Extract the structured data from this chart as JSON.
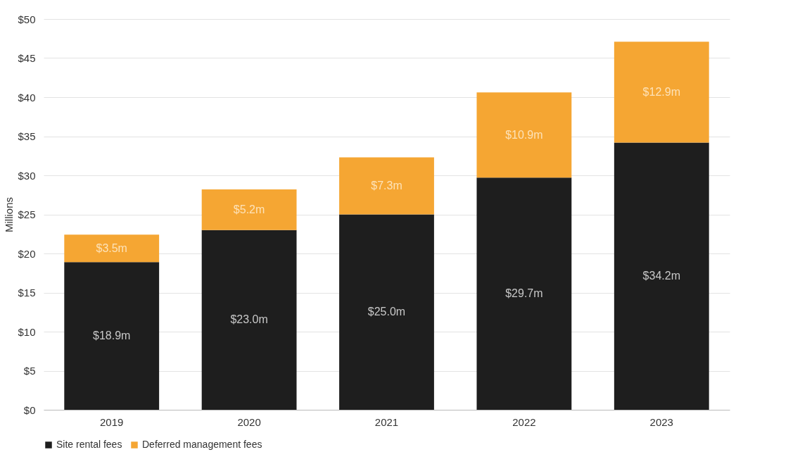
{
  "chart_data": {
    "type": "bar",
    "stacked": true,
    "ylabel": "Millions",
    "categories": [
      "2019",
      "2020",
      "2021",
      "2022",
      "2023"
    ],
    "series": [
      {
        "name": "Site rental fees",
        "color": "#1e1e1e",
        "values": [
          18.9,
          23.0,
          25.0,
          29.7,
          34.2
        ],
        "value_labels": [
          "$18.9m",
          "$23.0m",
          "$25.0m",
          "$29.7m",
          "$34.2m"
        ]
      },
      {
        "name": "Deferred management fees",
        "color": "#f5a633",
        "values": [
          3.5,
          5.2,
          7.3,
          10.9,
          12.9
        ],
        "value_labels": [
          "$3.5m",
          "$5.2m",
          "$7.3m",
          "$10.9m",
          "$12.9m"
        ]
      }
    ],
    "ylim": [
      0,
      50
    ],
    "yticks": [
      {
        "value": 0,
        "label": "$0"
      },
      {
        "value": 5,
        "label": "$5"
      },
      {
        "value": 10,
        "label": "$10"
      },
      {
        "value": 15,
        "label": "$15"
      },
      {
        "value": 20,
        "label": "$20"
      },
      {
        "value": 25,
        "label": "$25"
      },
      {
        "value": 30,
        "label": "$30"
      },
      {
        "value": 35,
        "label": "$35"
      },
      {
        "value": 40,
        "label": "$40"
      },
      {
        "value": 45,
        "label": "$45"
      },
      {
        "value": 50,
        "label": "$50"
      }
    ],
    "grid": "y",
    "legend": "bottom"
  }
}
